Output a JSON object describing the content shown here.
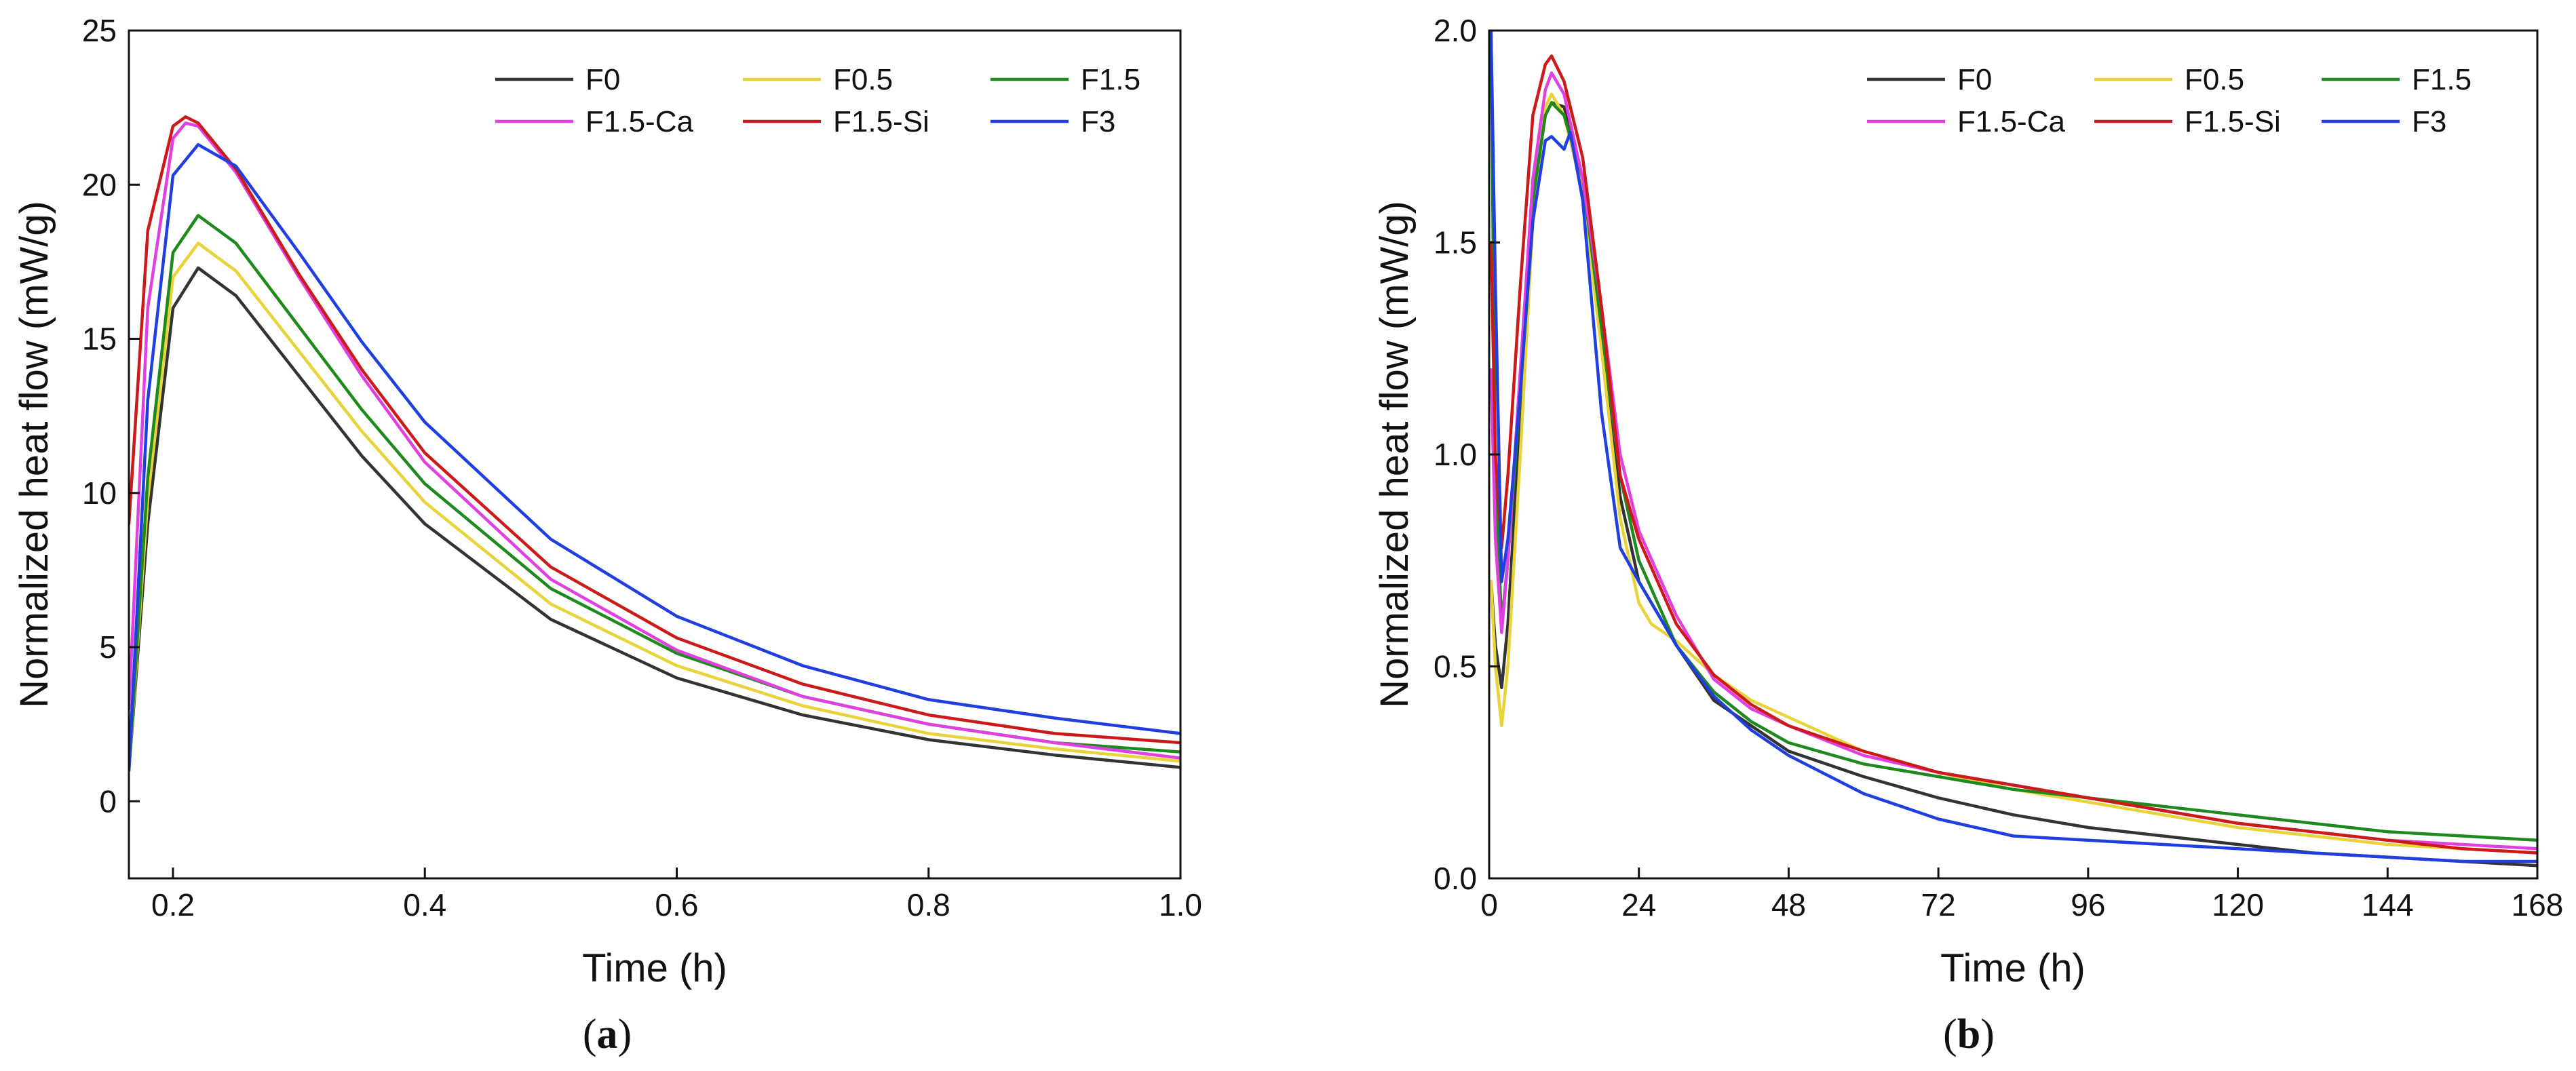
{
  "chart_data": [
    {
      "type": "line",
      "panel": "a",
      "caption": "(a)",
      "caption_open": "(",
      "caption_letter": "a",
      "caption_close": ")",
      "xlabel": "Time (h)",
      "ylabel": "Normalized heat flow (mW/g)",
      "xlim": [
        0.165,
        1.0
      ],
      "ylim": [
        -2.5,
        25
      ],
      "xticks": [
        0.2,
        0.4,
        0.6,
        0.8,
        1.0
      ],
      "xtick_labels": [
        "0.2",
        "0.4",
        "0.6",
        "0.8",
        "1.0"
      ],
      "yticks": [
        0,
        5,
        10,
        15,
        20,
        25
      ],
      "ytick_labels": [
        "0",
        "5",
        "10",
        "15",
        "20",
        "25"
      ],
      "legend_position": "top-right",
      "series": [
        {
          "name": "F0",
          "color": "#333333",
          "x": [
            0.165,
            0.18,
            0.2,
            0.22,
            0.25,
            0.3,
            0.35,
            0.4,
            0.5,
            0.6,
            0.7,
            0.8,
            0.9,
            1.0
          ],
          "y": [
            1.0,
            9.0,
            16.0,
            17.3,
            16.4,
            13.8,
            11.2,
            9.0,
            5.9,
            4.0,
            2.8,
            2.0,
            1.5,
            1.1
          ]
        },
        {
          "name": "F0.5",
          "color": "#e8d33a",
          "x": [
            0.165,
            0.18,
            0.2,
            0.22,
            0.25,
            0.3,
            0.35,
            0.4,
            0.5,
            0.6,
            0.7,
            0.8,
            0.9,
            1.0
          ],
          "y": [
            1.0,
            9.8,
            17.0,
            18.1,
            17.2,
            14.6,
            12.0,
            9.7,
            6.4,
            4.4,
            3.1,
            2.2,
            1.7,
            1.3
          ]
        },
        {
          "name": "F1.5",
          "color": "#1e8a1e",
          "x": [
            0.165,
            0.18,
            0.2,
            0.22,
            0.25,
            0.3,
            0.35,
            0.4,
            0.5,
            0.6,
            0.7,
            0.8,
            0.9,
            1.0
          ],
          "y": [
            1.0,
            10.5,
            17.8,
            19.0,
            18.1,
            15.4,
            12.7,
            10.3,
            6.9,
            4.8,
            3.4,
            2.5,
            1.9,
            1.6
          ]
        },
        {
          "name": "F1.5-Ca",
          "color": "#e040e0",
          "x": [
            0.165,
            0.18,
            0.2,
            0.21,
            0.22,
            0.25,
            0.3,
            0.35,
            0.4,
            0.5,
            0.6,
            0.7,
            0.8,
            0.9,
            1.0
          ],
          "y": [
            3.0,
            16.0,
            21.5,
            22.0,
            21.9,
            20.4,
            17.0,
            13.8,
            11.0,
            7.2,
            4.9,
            3.4,
            2.5,
            1.9,
            1.4
          ]
        },
        {
          "name": "F1.5-Si",
          "color": "#cc1a1a",
          "x": [
            0.165,
            0.18,
            0.2,
            0.21,
            0.22,
            0.25,
            0.3,
            0.35,
            0.4,
            0.5,
            0.6,
            0.7,
            0.8,
            0.9,
            1.0
          ],
          "y": [
            9.0,
            18.5,
            21.9,
            22.2,
            22.0,
            20.5,
            17.1,
            14.0,
            11.3,
            7.6,
            5.3,
            3.8,
            2.8,
            2.2,
            1.9
          ]
        },
        {
          "name": "F3",
          "color": "#1f3fe0",
          "x": [
            0.165,
            0.18,
            0.2,
            0.22,
            0.25,
            0.3,
            0.35,
            0.4,
            0.5,
            0.6,
            0.7,
            0.8,
            0.9,
            1.0
          ],
          "y": [
            1.0,
            13.0,
            20.3,
            21.3,
            20.6,
            17.8,
            14.9,
            12.3,
            8.5,
            6.0,
            4.4,
            3.3,
            2.7,
            2.2
          ]
        }
      ]
    },
    {
      "type": "line",
      "panel": "b",
      "caption": "(b)",
      "caption_open": "(",
      "caption_letter": "b",
      "caption_close": ")",
      "xlabel": "Time (h)",
      "ylabel": "Normalized heat flow (mW/g)",
      "xlim": [
        0,
        168
      ],
      "ylim": [
        0,
        2.0
      ],
      "xticks": [
        0,
        24,
        48,
        72,
        96,
        120,
        144,
        168
      ],
      "xtick_labels": [
        "0",
        "24",
        "48",
        "72",
        "96",
        "120",
        "144",
        "168"
      ],
      "yticks": [
        0,
        0.5,
        1.0,
        1.5,
        2.0
      ],
      "ytick_labels": [
        "0.0",
        "0.5",
        "1.0",
        "1.5",
        "2.0"
      ],
      "legend_position": "top-right",
      "series": [
        {
          "name": "F0",
          "color": "#333333",
          "x": [
            0.3,
            1,
            2,
            3,
            5,
            7,
            9,
            10,
            12,
            15,
            18,
            21,
            24,
            30,
            36,
            42,
            48,
            60,
            72,
            84,
            96,
            108,
            120,
            132,
            144,
            156,
            168
          ],
          "y": [
            0.7,
            0.55,
            0.45,
            0.6,
            1.1,
            1.6,
            1.8,
            1.83,
            1.82,
            1.65,
            1.3,
            0.9,
            0.7,
            0.55,
            0.42,
            0.36,
            0.3,
            0.24,
            0.19,
            0.15,
            0.12,
            0.1,
            0.08,
            0.06,
            0.05,
            0.04,
            0.03
          ]
        },
        {
          "name": "F0.5",
          "color": "#e8d33a",
          "x": [
            0.3,
            1,
            2,
            3,
            5,
            7,
            9,
            10,
            12,
            15,
            18,
            21,
            24,
            26,
            30,
            36,
            42,
            48,
            60,
            72,
            84,
            96,
            108,
            120,
            132,
            144,
            156,
            168
          ],
          "y": [
            0.7,
            0.5,
            0.36,
            0.5,
            1.0,
            1.55,
            1.82,
            1.85,
            1.8,
            1.62,
            1.25,
            0.85,
            0.65,
            0.6,
            0.56,
            0.48,
            0.42,
            0.38,
            0.3,
            0.25,
            0.21,
            0.18,
            0.15,
            0.12,
            0.1,
            0.08,
            0.07,
            0.06
          ]
        },
        {
          "name": "F1.5",
          "color": "#1e8a1e",
          "x": [
            0.3,
            1,
            2,
            3,
            5,
            7,
            9,
            10,
            12,
            15,
            18,
            21,
            24,
            30,
            36,
            42,
            48,
            60,
            72,
            84,
            96,
            108,
            120,
            132,
            144,
            156,
            168
          ],
          "y": [
            2.0,
            0.95,
            0.6,
            0.75,
            1.15,
            1.6,
            1.8,
            1.83,
            1.8,
            1.65,
            1.3,
            0.95,
            0.75,
            0.55,
            0.44,
            0.37,
            0.32,
            0.27,
            0.24,
            0.21,
            0.19,
            0.17,
            0.15,
            0.13,
            0.11,
            0.1,
            0.09
          ]
        },
        {
          "name": "F1.5-Ca",
          "color": "#e040e0",
          "x": [
            0.3,
            1,
            2,
            3,
            5,
            7,
            9,
            10,
            12,
            15,
            18,
            21,
            24,
            30,
            36,
            42,
            48,
            60,
            72,
            84,
            96,
            108,
            120,
            132,
            144,
            156,
            168
          ],
          "y": [
            1.2,
            0.8,
            0.58,
            0.75,
            1.2,
            1.65,
            1.86,
            1.9,
            1.85,
            1.65,
            1.35,
            1.0,
            0.82,
            0.62,
            0.47,
            0.4,
            0.36,
            0.29,
            0.25,
            0.22,
            0.19,
            0.16,
            0.13,
            0.11,
            0.09,
            0.08,
            0.07
          ]
        },
        {
          "name": "F1.5-Si",
          "color": "#cc1a1a",
          "x": [
            0.3,
            1,
            2,
            3,
            5,
            7,
            9,
            10,
            12,
            15,
            18,
            21,
            24,
            30,
            36,
            42,
            48,
            60,
            72,
            84,
            96,
            108,
            120,
            132,
            144,
            156,
            168
          ],
          "y": [
            1.5,
            1.0,
            0.78,
            0.95,
            1.4,
            1.8,
            1.92,
            1.94,
            1.88,
            1.7,
            1.35,
            0.95,
            0.8,
            0.6,
            0.48,
            0.41,
            0.36,
            0.3,
            0.25,
            0.22,
            0.19,
            0.16,
            0.13,
            0.11,
            0.09,
            0.07,
            0.06
          ]
        },
        {
          "name": "F3",
          "color": "#1f3fe0",
          "x": [
            0.3,
            1,
            2,
            3,
            5,
            7,
            9,
            10,
            12,
            13,
            15,
            18,
            21,
            24,
            30,
            36,
            42,
            48,
            60,
            72,
            84,
            96,
            108,
            120,
            132,
            144,
            156,
            168
          ],
          "y": [
            2.0,
            1.4,
            0.7,
            0.8,
            1.15,
            1.55,
            1.74,
            1.75,
            1.72,
            1.76,
            1.6,
            1.1,
            0.78,
            0.7,
            0.55,
            0.43,
            0.35,
            0.29,
            0.2,
            0.14,
            0.1,
            0.09,
            0.08,
            0.07,
            0.06,
            0.05,
            0.04,
            0.04
          ]
        }
      ]
    }
  ]
}
